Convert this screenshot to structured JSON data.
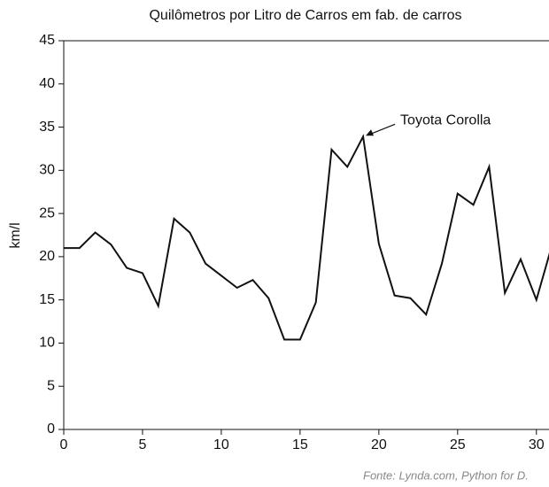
{
  "chart_data": {
    "type": "line",
    "title": "Quilômetros por Litro de Carros em fab. de carros",
    "ylabel": "km/l",
    "source": "Fonte: Lynda.com, Python for D.",
    "x": [
      0,
      1,
      2,
      3,
      4,
      5,
      6,
      7,
      8,
      9,
      10,
      11,
      12,
      13,
      14,
      15,
      16,
      17,
      18,
      19,
      20,
      21,
      22,
      23,
      24,
      25,
      26,
      27,
      28,
      29,
      30,
      31
    ],
    "series": [
      {
        "name": "km/l",
        "color": "#111111",
        "values": [
          21.0,
          21.0,
          22.8,
          21.4,
          18.7,
          18.1,
          14.3,
          24.4,
          22.8,
          19.2,
          17.8,
          16.4,
          17.3,
          15.2,
          10.4,
          10.4,
          14.7,
          32.4,
          30.4,
          33.9,
          21.5,
          15.5,
          15.2,
          13.3,
          19.2,
          27.3,
          26.0,
          30.4,
          15.8,
          19.7,
          15.0,
          21.4
        ]
      }
    ],
    "annotations": [
      {
        "text": "Toyota Corolla",
        "x": 19,
        "y": 33.9
      }
    ],
    "xlim": [
      0,
      30.8
    ],
    "xticks": [
      0,
      5,
      10,
      15,
      20,
      25,
      30
    ],
    "ylim": [
      0,
      45
    ],
    "yticks": [
      0,
      5,
      10,
      15,
      20,
      25,
      30,
      35,
      40,
      45
    ],
    "grid": false
  }
}
